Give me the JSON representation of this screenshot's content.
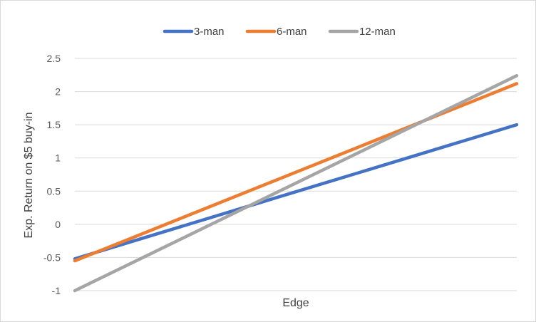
{
  "chart_data": {
    "type": "line",
    "title": "",
    "xlabel": "Edge",
    "ylabel": "Exp. Return on $5 buy-in",
    "ylim": [
      -1,
      2.5
    ],
    "yticks": [
      "-1",
      "-0.5",
      "0",
      "0.5",
      "1",
      "1.5",
      "2",
      "2.5"
    ],
    "x_tick_labels_shown": false,
    "grid": "horizontal",
    "legend": "top-center",
    "series": [
      {
        "name": "3-man",
        "color": "#4472c4",
        "values": [
          -0.52,
          1.5
        ]
      },
      {
        "name": "6-man",
        "color": "#ed7d31",
        "values": [
          -0.55,
          2.12
        ]
      },
      {
        "name": "12-man",
        "color": "#a5a5a5",
        "values": [
          -1.0,
          2.24
        ]
      }
    ]
  }
}
